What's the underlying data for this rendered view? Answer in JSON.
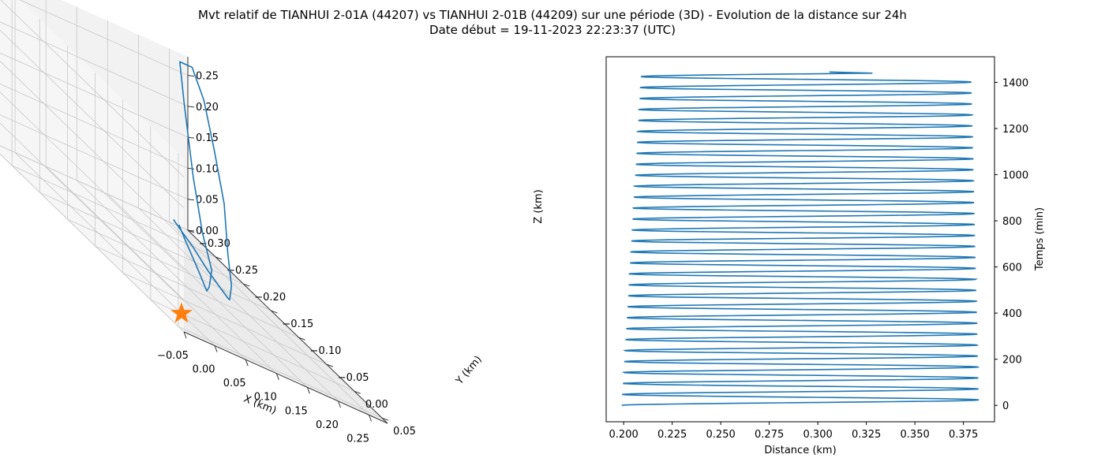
{
  "figure": {
    "title_line1": "Mvt relatif de TIANHUI 2-01A (44207) vs TIANHUI 2-01B (44209) sur une période (3D) - Evolution de la distance sur 24h",
    "title_line2": "Date début = 19-11-2023 22:23:37 (UTC)"
  },
  "colors": {
    "series": "#1f77b4",
    "marker": "#ff7f0e",
    "grid": "#b0b0b0",
    "pane": "#f2f2f2"
  },
  "chart_data": [
    {
      "type": "line",
      "projection": "3d",
      "xlabel": "X (km)",
      "ylabel": "Y (km)",
      "zlabel": "Z (km)",
      "x_ticks": [
        "−0.05",
        "0.00",
        "0.05",
        "0.10",
        "0.15",
        "0.20",
        "0.25"
      ],
      "y_ticks": [
        "0.05",
        "0.00",
        "−0.05",
        "−0.10",
        "−0.15",
        "−0.20",
        "−0.25",
        "−0.30"
      ],
      "z_ticks": [
        "0.00",
        "0.05",
        "0.10",
        "0.15",
        "0.20",
        "0.25"
      ],
      "grid": true,
      "series": [
        {
          "points": [
            {
              "x": -0.04,
              "y": 0.03,
              "z": 0.16
            },
            {
              "x": -0.03,
              "y": 0.03,
              "z": 0.15
            },
            {
              "x": 0.01,
              "y": 0.01,
              "z": 0.12
            },
            {
              "x": 0.06,
              "y": -0.02,
              "z": 0.08
            },
            {
              "x": 0.1,
              "y": -0.04,
              "z": 0.05
            },
            {
              "x": 0.13,
              "y": -0.06,
              "z": 0.03
            },
            {
              "x": 0.15,
              "y": -0.08,
              "z": 0.02
            },
            {
              "x": 0.18,
              "y": -0.11,
              "z": 0.03
            },
            {
              "x": 0.21,
              "y": -0.15,
              "z": 0.06
            },
            {
              "x": 0.24,
              "y": -0.19,
              "z": 0.12
            },
            {
              "x": 0.26,
              "y": -0.23,
              "z": 0.18
            },
            {
              "x": 0.27,
              "y": -0.26,
              "z": 0.24
            },
            {
              "x": 0.26,
              "y": -0.27,
              "z": 0.28
            },
            {
              "x": 0.24,
              "y": -0.27,
              "z": 0.28
            },
            {
              "x": 0.22,
              "y": -0.24,
              "z": 0.23
            },
            {
              "x": 0.19,
              "y": -0.19,
              "z": 0.14
            },
            {
              "x": 0.16,
              "y": -0.14,
              "z": 0.08
            },
            {
              "x": 0.13,
              "y": -0.09,
              "z": 0.05
            },
            {
              "x": 0.09,
              "y": -0.05,
              "z": 0.04
            },
            {
              "x": 0.05,
              "y": -0.01,
              "z": 0.05
            },
            {
              "x": 0.01,
              "y": 0.02,
              "z": 0.09
            },
            {
              "x": -0.03,
              "y": 0.04,
              "z": 0.14
            },
            {
              "x": -0.04,
              "y": 0.04,
              "z": 0.16
            }
          ]
        }
      ],
      "marker": {
        "x": 0.0,
        "y": 0.0,
        "z": 0.0,
        "shape": "star"
      }
    },
    {
      "type": "line",
      "xlabel": "Distance (km)",
      "ylabel": "Temps (min)",
      "xlim": [
        0.191,
        0.391
      ],
      "ylim": [
        -71,
        1511
      ],
      "x_ticks": [
        0.2,
        0.225,
        0.25,
        0.275,
        0.3,
        0.325,
        0.35,
        0.375
      ],
      "y_ticks": [
        0,
        200,
        400,
        600,
        800,
        1000,
        1200,
        1400
      ],
      "x_tick_labels": [
        "0.200",
        "0.225",
        "0.250",
        "0.275",
        "0.300",
        "0.325",
        "0.350",
        "0.375"
      ],
      "y_tick_labels": [
        "0",
        "200",
        "400",
        "600",
        "800",
        "1000",
        "1200",
        "1400"
      ],
      "y_axis_side": "right",
      "grid": false,
      "series": [
        {
          "x_start": 0.199,
          "x_min_first": 0.199,
          "x_min_last": 0.209,
          "x_max_first": 0.383,
          "x_max_last": 0.379,
          "t_start": 0,
          "t_end": 1440,
          "period_min": 47.5,
          "x_end": 0.306
        }
      ]
    }
  ]
}
